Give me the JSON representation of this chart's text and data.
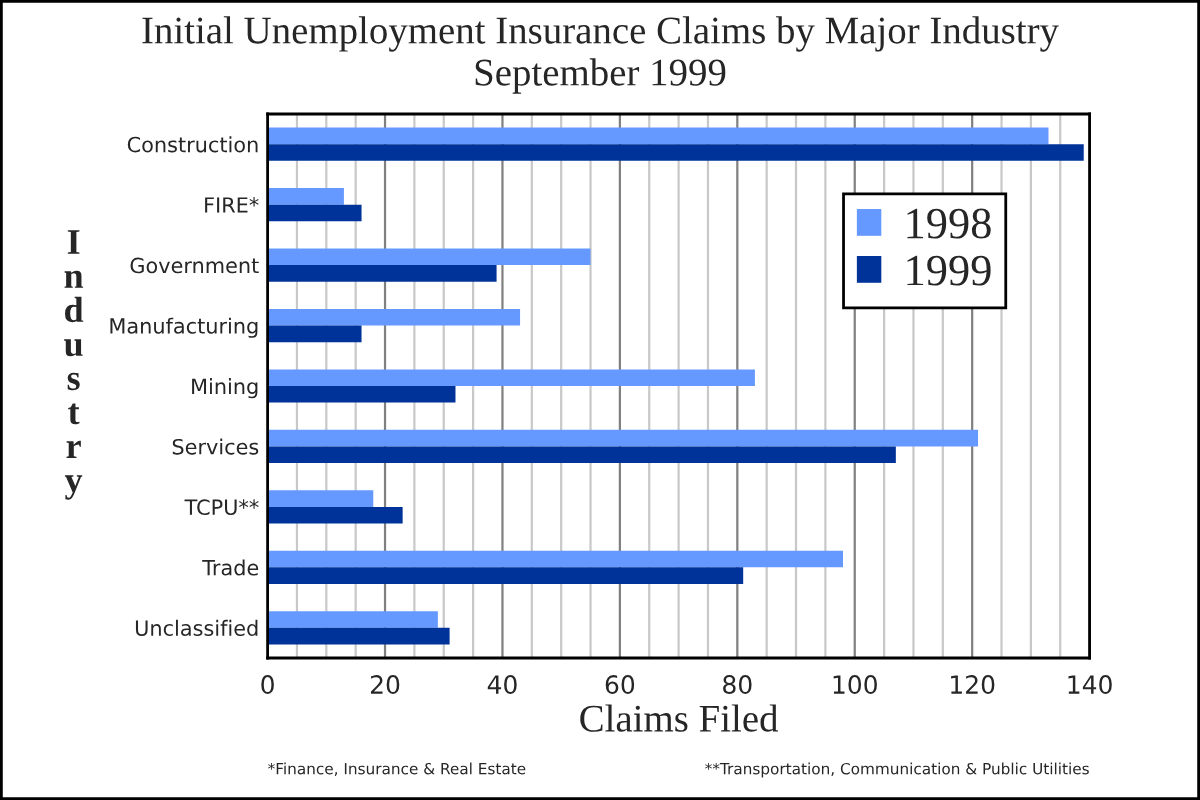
{
  "chart_data": {
    "type": "bar",
    "orientation": "horizontal",
    "title": "Initial Unemployment Insurance Claims by Major Industry",
    "subtitle": "September 1999",
    "xlabel": "Claims Filed",
    "ylabel": "Industry",
    "categories": [
      "Construction",
      "FIRE*",
      "Government",
      "Manufacturing",
      "Mining",
      "Services",
      "TCPU**",
      "Trade",
      "Unclassified"
    ],
    "series": [
      {
        "name": "1998",
        "color": "#6699ff",
        "values": [
          133,
          13,
          55,
          43,
          83,
          121,
          18,
          98,
          29
        ]
      },
      {
        "name": "1999",
        "color": "#003399",
        "values": [
          139,
          16,
          39,
          16,
          32,
          107,
          23,
          81,
          31
        ]
      }
    ],
    "xlim": [
      0,
      140
    ],
    "xticks": [
      0,
      20,
      40,
      60,
      80,
      100,
      120,
      140
    ],
    "grid": "x",
    "legend": "top right",
    "annotations": [
      "*Finance, Insurance & Real Estate",
      "**Transportation, Communication & Public Utilities"
    ]
  }
}
